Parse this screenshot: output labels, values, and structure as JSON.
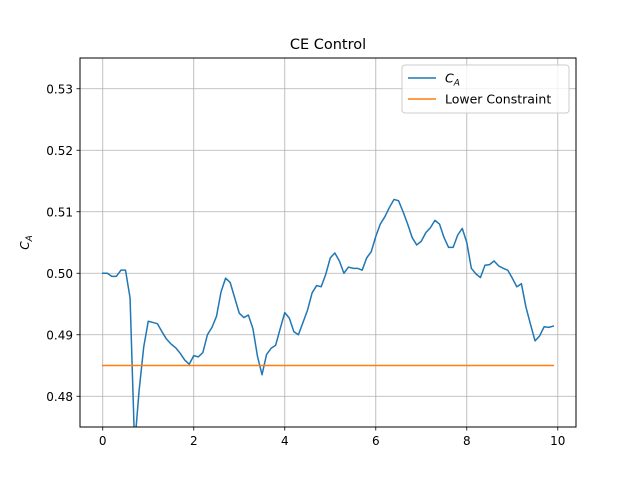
{
  "chart_data": {
    "type": "line",
    "title": "CE Control",
    "xlabel": "",
    "ylabel": {
      "base": "C",
      "sub": "A"
    },
    "xlim": [
      -0.5,
      10.4
    ],
    "ylim": [
      0.475,
      0.535
    ],
    "xticks": [
      0,
      2,
      4,
      6,
      8,
      10
    ],
    "yticks": [
      0.48,
      0.49,
      0.5,
      0.51,
      0.52,
      0.53
    ],
    "ytick_labels": [
      "0.48",
      "0.49",
      "0.50",
      "0.51",
      "0.52",
      "0.53"
    ],
    "grid": true,
    "legend": {
      "location": "top-right"
    },
    "series": [
      {
        "name": {
          "base": "C",
          "sub": "A"
        },
        "color": "#1f77b4",
        "x": [
          0.0,
          0.1,
          0.2,
          0.3,
          0.4,
          0.5,
          0.6,
          0.7,
          0.8,
          0.9,
          1.0,
          1.1,
          1.2,
          1.3,
          1.4,
          1.5,
          1.6,
          1.7,
          1.8,
          1.9,
          2.0,
          2.1,
          2.2,
          2.3,
          2.4,
          2.5,
          2.6,
          2.7,
          2.8,
          2.9,
          3.0,
          3.1,
          3.2,
          3.3,
          3.4,
          3.5,
          3.6,
          3.7,
          3.8,
          3.9,
          4.0,
          4.1,
          4.2,
          4.3,
          4.4,
          4.5,
          4.6,
          4.7,
          4.8,
          4.9,
          5.0,
          5.1,
          5.2,
          5.3,
          5.4,
          5.5,
          5.6,
          5.7,
          5.8,
          5.9,
          6.0,
          6.1,
          6.2,
          6.3,
          6.4,
          6.5,
          6.6,
          6.7,
          6.8,
          6.9,
          7.0,
          7.1,
          7.2,
          7.3,
          7.4,
          7.5,
          7.6,
          7.7,
          7.8,
          7.9,
          8.0,
          8.1,
          8.2,
          8.3,
          8.4,
          8.5,
          8.6,
          8.7,
          8.8,
          8.9,
          9.0,
          9.1,
          9.2,
          9.3,
          9.4,
          9.5,
          9.6,
          9.7,
          9.8,
          9.9
        ],
        "values": [
          0.5,
          0.5,
          0.4995,
          0.4995,
          0.5005,
          0.5005,
          0.496,
          0.472,
          0.481,
          0.488,
          0.4922,
          0.492,
          0.4918,
          0.4905,
          0.4893,
          0.4885,
          0.4879,
          0.487,
          0.4859,
          0.4852,
          0.4866,
          0.4864,
          0.4871,
          0.49,
          0.4912,
          0.493,
          0.497,
          0.4992,
          0.4985,
          0.496,
          0.4935,
          0.4928,
          0.4932,
          0.491,
          0.4865,
          0.4835,
          0.4868,
          0.4878,
          0.4883,
          0.491,
          0.4936,
          0.4927,
          0.4905,
          0.49,
          0.492,
          0.494,
          0.4968,
          0.498,
          0.4978,
          0.4998,
          0.5025,
          0.5033,
          0.502,
          0.5,
          0.501,
          0.5008,
          0.5008,
          0.5005,
          0.5025,
          0.5035,
          0.506,
          0.508,
          0.5092,
          0.5107,
          0.512,
          0.5118,
          0.51,
          0.508,
          0.5058,
          0.5046,
          0.5052,
          0.5066,
          0.5074,
          0.5086,
          0.508,
          0.5058,
          0.5042,
          0.5042,
          0.5062,
          0.5073,
          0.505,
          0.5008,
          0.4999,
          0.4993,
          0.5013,
          0.5014,
          0.502,
          0.5012,
          0.5008,
          0.5005,
          0.4992,
          0.4978,
          0.4983,
          0.4945,
          0.4917,
          0.489,
          0.4898,
          0.4913,
          0.4912,
          0.4914
        ]
      },
      {
        "name": "Lower Constraint",
        "color": "#ff7f0e",
        "x": [
          0.0,
          9.9
        ],
        "values": [
          0.485,
          0.485
        ]
      }
    ]
  }
}
